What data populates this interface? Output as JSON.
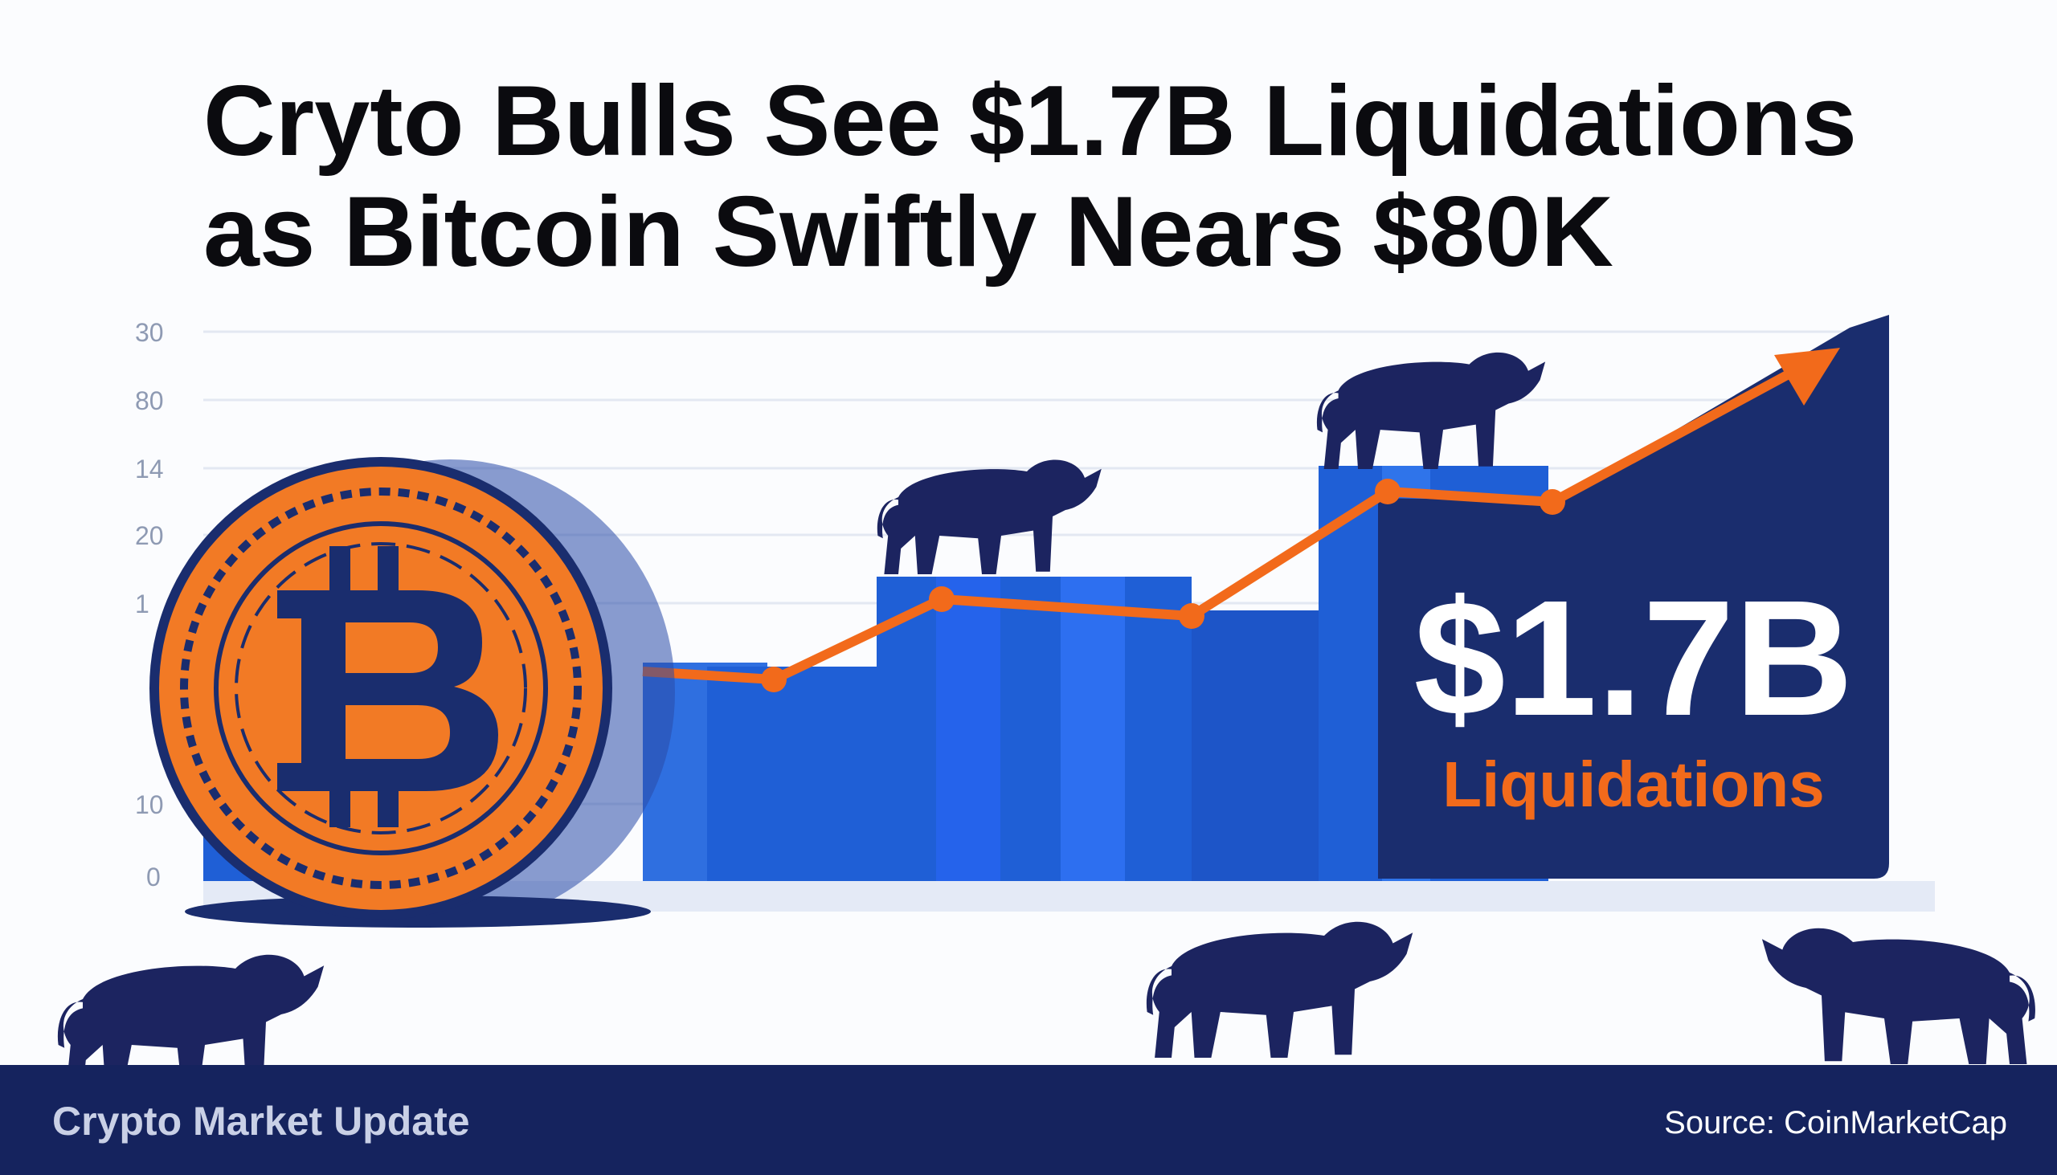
{
  "headline": {
    "line1": "Cryto Bulls See $1.7B Liquidations",
    "line2": "as Bitcoin Swiftly Nears $80K"
  },
  "axis_labels": [
    "30",
    "80",
    "14",
    "20",
    "1",
    "10",
    "0"
  ],
  "callout": {
    "amount": "$1.7B",
    "label": "Liquidations"
  },
  "footer": {
    "left": "Crypto Market Update",
    "right": "Source: CoinMarketCap"
  }
}
